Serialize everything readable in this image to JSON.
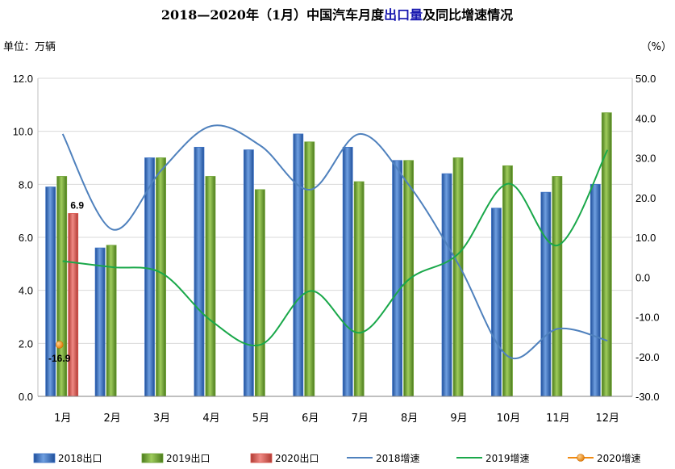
{
  "title": {
    "prefix": "2018—2020年（1月）中国汽车月度",
    "highlight": "出口量",
    "suffix": "及同比增速情况"
  },
  "left_unit": "单位：万辆",
  "right_unit": "（%）",
  "colors": {
    "bar_2018": "#3d72c4",
    "bar_2019": "#6fa336",
    "bar_2020": "#d9574f",
    "line_2018": "#4f81bd",
    "line_2019": "#1aa84a",
    "point_2020": "#f08a12"
  },
  "chart_data": {
    "type": "bar",
    "categories": [
      "1月",
      "2月",
      "3月",
      "4月",
      "5月",
      "6月",
      "7月",
      "8月",
      "9月",
      "10月",
      "11月",
      "12月"
    ],
    "bar_series": [
      {
        "name": "2018出口",
        "values": [
          7.9,
          5.6,
          9.0,
          9.4,
          9.3,
          9.9,
          9.4,
          8.9,
          8.4,
          7.1,
          7.7,
          8.0
        ]
      },
      {
        "name": "2019出口",
        "values": [
          8.3,
          5.7,
          9.0,
          8.3,
          7.8,
          9.6,
          8.1,
          8.9,
          9.0,
          8.7,
          8.3,
          10.7
        ]
      },
      {
        "name": "2020出口",
        "values": [
          6.9,
          null,
          null,
          null,
          null,
          null,
          null,
          null,
          null,
          null,
          null,
          null
        ]
      }
    ],
    "line_series": [
      {
        "name": "2018增速",
        "values": [
          36,
          12,
          27,
          38,
          33,
          22,
          36,
          23,
          3,
          -20,
          -13,
          -16
        ]
      },
      {
        "name": "2019增速",
        "values": [
          4,
          2.5,
          1,
          -11,
          -17,
          -3.5,
          -14,
          -0.5,
          6,
          23.5,
          8,
          32
        ]
      },
      {
        "name": "2020增速",
        "values": [
          -17,
          null,
          null,
          null,
          null,
          null,
          null,
          null,
          null,
          null,
          null,
          null
        ]
      }
    ],
    "left_axis": {
      "min": 0,
      "max": 12,
      "step": 2,
      "tick_labels": [
        "0.0",
        "2.0",
        "4.0",
        "6.0",
        "8.0",
        "10.0",
        "12.0"
      ]
    },
    "right_axis": {
      "min": -30,
      "max": 50,
      "step": 10,
      "tick_labels": [
        "-30.0",
        "-20.0",
        "-10.0",
        "0.0",
        "10.0",
        "20.0",
        "30.0",
        "40.0",
        "50.0"
      ]
    },
    "data_labels": [
      {
        "series": "2020出口",
        "category": "1月",
        "text": "6.9"
      },
      {
        "series": "2020增速",
        "category": "1月",
        "text": "-16.9"
      }
    ],
    "legend_position": "bottom",
    "grid": "horizontal"
  }
}
